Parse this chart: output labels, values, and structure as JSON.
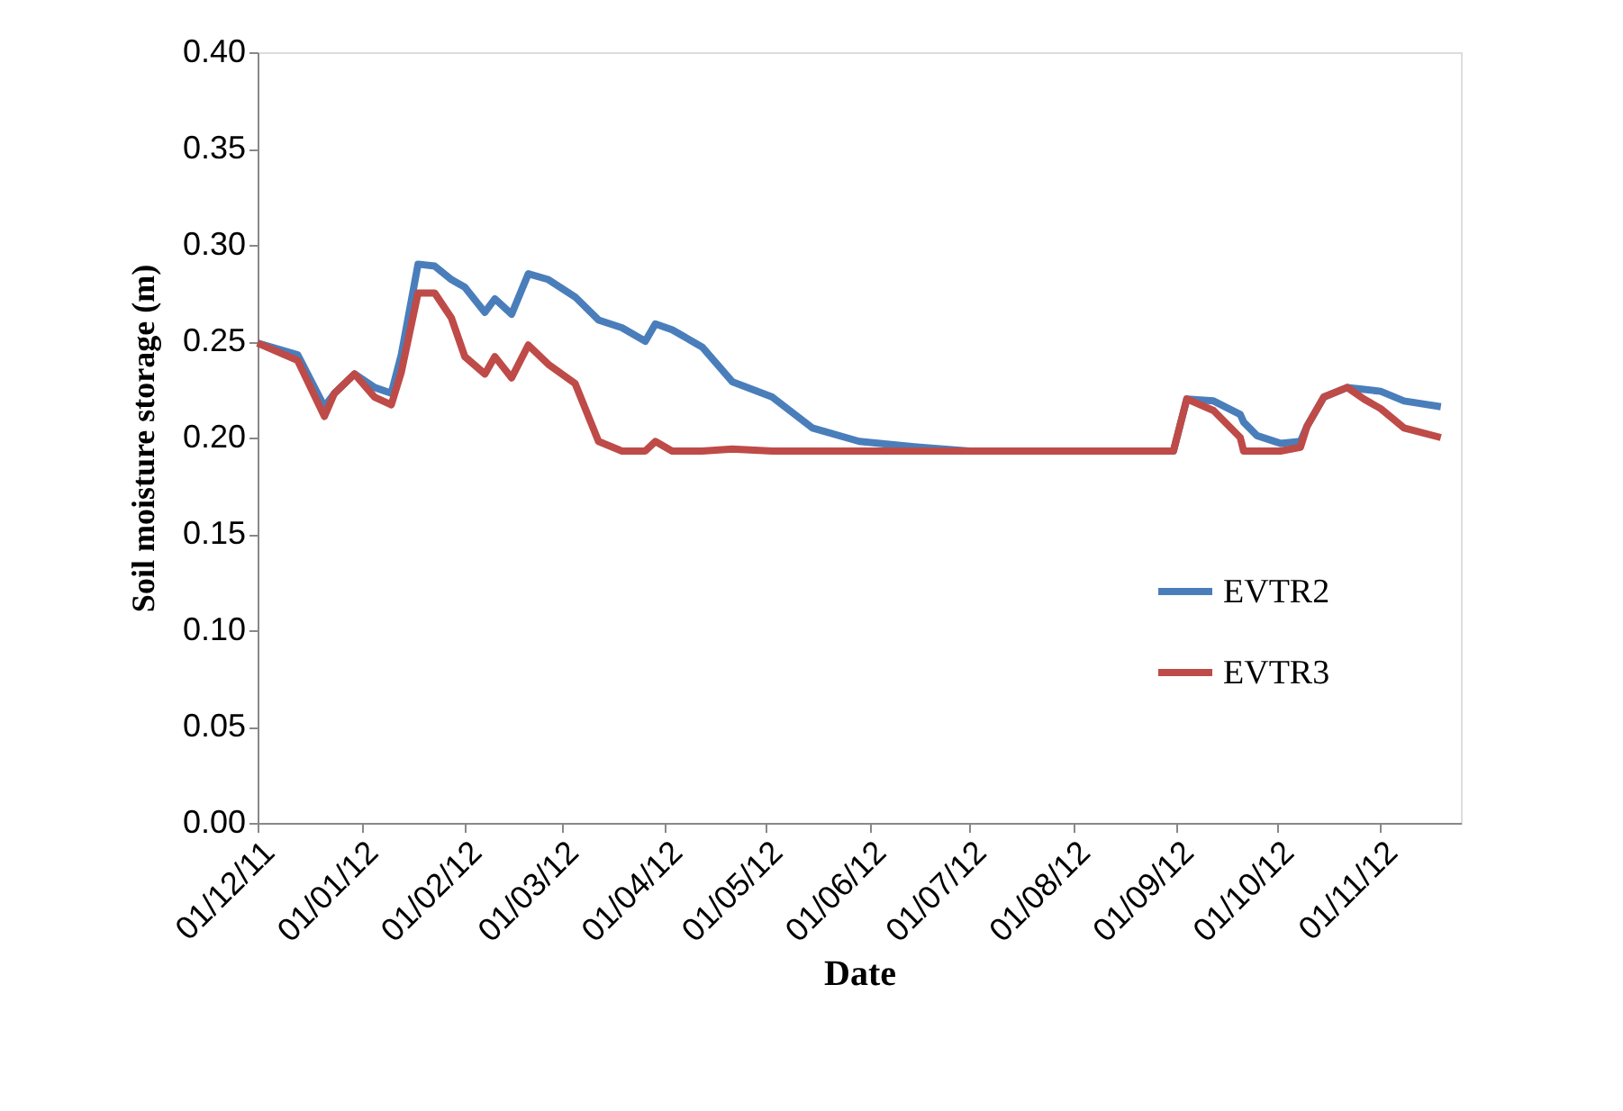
{
  "chart_data": {
    "type": "line",
    "xlabel": "Date",
    "ylabel": "Soil moisture storage (m)",
    "x": [
      "2011-12-01",
      "2011-12-13",
      "2011-12-21",
      "2011-12-24",
      "2011-12-30",
      "2012-01-05",
      "2012-01-10",
      "2012-01-13",
      "2012-01-18",
      "2012-01-23",
      "2012-01-28",
      "2012-02-01",
      "2012-02-07",
      "2012-02-10",
      "2012-02-15",
      "2012-02-20",
      "2012-02-26",
      "2012-03-05",
      "2012-03-12",
      "2012-03-19",
      "2012-03-26",
      "2012-03-29",
      "2012-04-03",
      "2012-04-12",
      "2012-04-21",
      "2012-05-03",
      "2012-05-15",
      "2012-05-29",
      "2012-06-16",
      "2012-07-01",
      "2012-08-31",
      "2012-09-04",
      "2012-09-12",
      "2012-09-20",
      "2012-09-21",
      "2012-09-25",
      "2012-10-02",
      "2012-10-08",
      "2012-10-10",
      "2012-10-15",
      "2012-10-22",
      "2012-10-27",
      "2012-11-01",
      "2012-11-08",
      "2012-11-19"
    ],
    "series": [
      {
        "name": "EVTR2",
        "color": "#4a7ebb",
        "values": [
          0.249,
          0.243,
          0.216,
          0.223,
          0.233,
          0.226,
          0.223,
          0.243,
          0.29,
          0.289,
          0.282,
          0.278,
          0.265,
          0.272,
          0.264,
          0.285,
          0.282,
          0.273,
          0.261,
          0.257,
          0.25,
          0.259,
          0.256,
          0.247,
          0.229,
          0.221,
          0.205,
          0.198,
          0.195,
          0.193,
          0.193,
          0.22,
          0.219,
          0.212,
          0.208,
          0.201,
          0.197,
          0.198,
          0.206,
          0.221,
          0.226,
          0.225,
          0.224,
          0.219,
          0.216
        ]
      },
      {
        "name": "EVTR3",
        "color": "#be4b48",
        "values": [
          0.249,
          0.24,
          0.211,
          0.223,
          0.233,
          0.221,
          0.217,
          0.234,
          0.275,
          0.275,
          0.262,
          0.242,
          0.233,
          0.242,
          0.231,
          0.248,
          0.238,
          0.228,
          0.198,
          0.193,
          0.193,
          0.198,
          0.193,
          0.193,
          0.194,
          0.193,
          0.193,
          0.193,
          0.193,
          0.193,
          0.193,
          0.22,
          0.214,
          0.2,
          0.193,
          0.193,
          0.193,
          0.195,
          0.206,
          0.221,
          0.226,
          0.22,
          0.215,
          0.205,
          0.2
        ]
      }
    ],
    "xlim": [
      "2011-12-01",
      "2012-11-25"
    ],
    "xticks": [
      {
        "value": "2011-12-01",
        "label": "01/12/11"
      },
      {
        "value": "2012-01-01",
        "label": "01/01/12"
      },
      {
        "value": "2012-02-01",
        "label": "01/02/12"
      },
      {
        "value": "2012-03-01",
        "label": "01/03/12"
      },
      {
        "value": "2012-04-01",
        "label": "01/04/12"
      },
      {
        "value": "2012-05-01",
        "label": "01/05/12"
      },
      {
        "value": "2012-06-01",
        "label": "01/06/12"
      },
      {
        "value": "2012-07-01",
        "label": "01/07/12"
      },
      {
        "value": "2012-08-01",
        "label": "01/08/12"
      },
      {
        "value": "2012-09-01",
        "label": "01/09/12"
      },
      {
        "value": "2012-10-01",
        "label": "01/10/12"
      },
      {
        "value": "2012-11-01",
        "label": "01/11/12"
      }
    ],
    "ylim": [
      0,
      0.4
    ],
    "yticks": [
      {
        "value": 0,
        "label": "0.00"
      },
      {
        "value": 0.05,
        "label": "0.05"
      },
      {
        "value": 0.1,
        "label": "0.10"
      },
      {
        "value": 0.15,
        "label": "0.15"
      },
      {
        "value": 0.2,
        "label": "0.20"
      },
      {
        "value": 0.25,
        "label": "0.25"
      },
      {
        "value": 0.3,
        "label": "0.30"
      },
      {
        "value": 0.35,
        "label": "0.35"
      },
      {
        "value": 0.4,
        "label": "0.40"
      }
    ],
    "grid": false,
    "legend": "right",
    "marker": "none",
    "line_style": "solid"
  }
}
